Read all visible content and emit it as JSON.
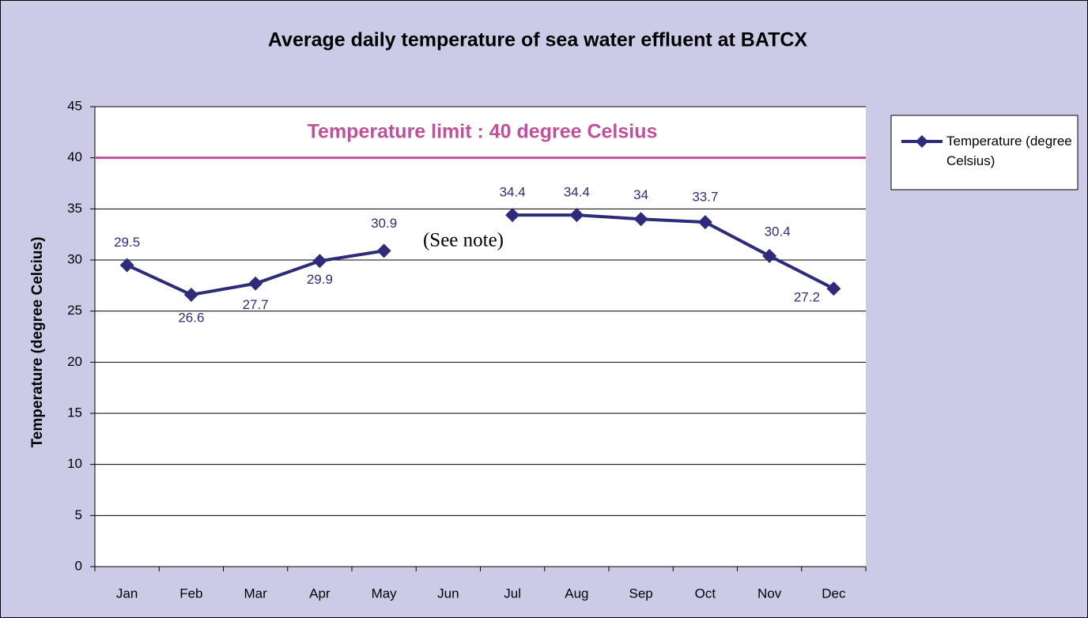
{
  "chart_data": {
    "type": "line",
    "title": "Average daily temperature of sea water effluent at BATCX",
    "y_label": "Temperature (degree Celcius)",
    "categories": [
      "Jan",
      "Feb",
      "Mar",
      "Apr",
      "May",
      "Jun",
      "Jul",
      "Aug",
      "Sep",
      "Oct",
      "Nov",
      "Dec"
    ],
    "series": [
      {
        "name": "Temperature (degree Celsius)",
        "color": "#2e2c7a",
        "values": [
          29.5,
          26.6,
          27.7,
          29.9,
          30.9,
          null,
          34.4,
          34.4,
          34,
          33.7,
          30.4,
          27.2
        ]
      }
    ],
    "ylim": [
      0,
      45
    ],
    "yticks": [
      0,
      5,
      10,
      15,
      20,
      25,
      30,
      35,
      40,
      45
    ],
    "grid": true,
    "limit": {
      "value": 40,
      "label": "Temperature limit : 40 degree Celsius",
      "color": "#c0509a"
    },
    "annotation": "(See note)",
    "legend": "right"
  }
}
